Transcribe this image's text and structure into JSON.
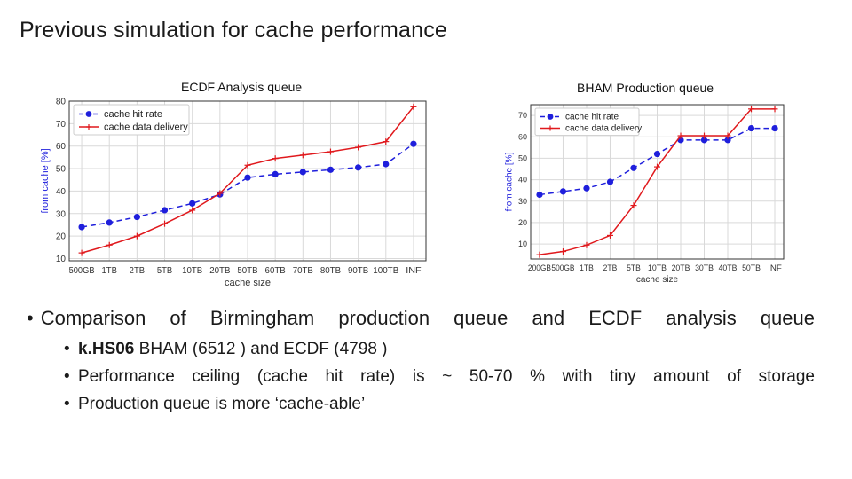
{
  "slide": {
    "title": "Previous simulation for cache performance",
    "bullet_main": "Comparison of Birmingham production queue and ECDF analysis queue",
    "sub_bullets": [
      {
        "bold": "k.HS06",
        "rest": " BHAM (6512 ) and ECDF (4798 )"
      },
      {
        "bold": "",
        "rest": "Performance ceiling (cache hit rate) is ~ 50-70 % with tiny amount of storage"
      },
      {
        "bold": "",
        "rest": "Production queue is more ‘cache-able’"
      }
    ]
  },
  "colors": {
    "hit": "#1f1fdc",
    "delivery": "#e0191d",
    "grid": "#d9d9d9",
    "axis": "#333333"
  },
  "chart_data": [
    {
      "type": "line",
      "title": "ECDF Analysis queue",
      "xlabel": "cache size",
      "ylabel": "from cache [%]",
      "categories": [
        "500GB",
        "1TB",
        "2TB",
        "5TB",
        "10TB",
        "20TB",
        "50TB",
        "60TB",
        "70TB",
        "80TB",
        "90TB",
        "100TB",
        "INF"
      ],
      "ylim": [
        9,
        80
      ],
      "yticks": [
        10,
        20,
        30,
        40,
        50,
        60,
        70,
        80
      ],
      "grid": true,
      "legend": "top-left",
      "series": [
        {
          "name": "cache hit rate",
          "style": "dashed-dot",
          "values": [
            24,
            26,
            28.5,
            31.5,
            34.5,
            38.5,
            46,
            47.5,
            48.5,
            49.5,
            50.5,
            52,
            61
          ]
        },
        {
          "name": "cache data delivery",
          "style": "solid-plus",
          "values": [
            12.5,
            16,
            20,
            25.5,
            31.5,
            39,
            51.5,
            54.5,
            56,
            57.5,
            59.5,
            62,
            77.5
          ]
        }
      ]
    },
    {
      "type": "line",
      "title": "BHAM Production queue",
      "xlabel": "cache size",
      "ylabel": "from cache [%]",
      "categories": [
        "200GB",
        "500GB",
        "1TB",
        "2TB",
        "5TB",
        "10TB",
        "20TB",
        "30TB",
        "40TB",
        "50TB",
        "INF"
      ],
      "ylim": [
        3,
        75
      ],
      "yticks": [
        10,
        20,
        30,
        40,
        50,
        60,
        70
      ],
      "grid": true,
      "legend": "top-left",
      "series": [
        {
          "name": "cache hit rate",
          "style": "dashed-dot",
          "values": [
            33,
            34.5,
            36,
            39,
            45.5,
            52,
            58.5,
            58.5,
            58.5,
            64,
            64
          ]
        },
        {
          "name": "cache data delivery",
          "style": "solid-plus",
          "values": [
            5,
            6.5,
            9.5,
            14,
            28,
            46,
            60.5,
            60.5,
            60.5,
            73,
            73
          ]
        }
      ]
    }
  ]
}
